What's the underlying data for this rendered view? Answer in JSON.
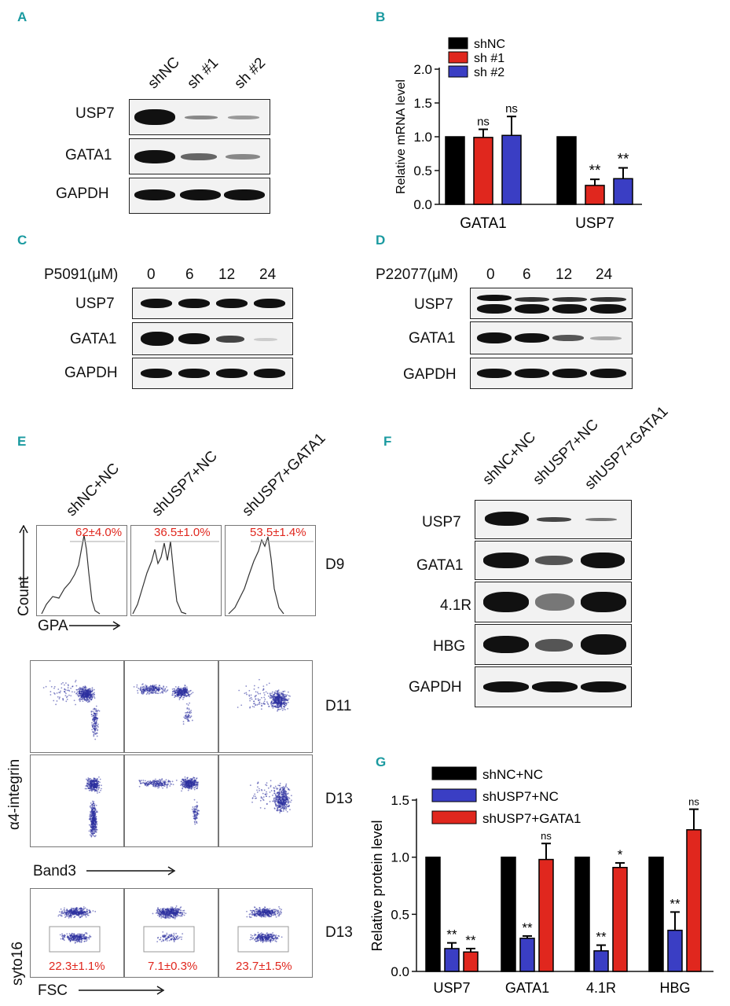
{
  "panels": {
    "A": {
      "letter": "A",
      "lanes": [
        "shNC",
        "sh #1",
        "sh #2"
      ],
      "rows": [
        "USP7",
        "GATA1",
        "GAPDH"
      ]
    },
    "B": {
      "letter": "B"
    },
    "C": {
      "letter": "C",
      "drug": "P5091(μM)",
      "doses": [
        "0",
        "6",
        "12",
        "24"
      ],
      "rows": [
        "USP7",
        "GATA1",
        "GAPDH"
      ]
    },
    "D": {
      "letter": "D",
      "drug": "P22077(μM)",
      "doses": [
        "0",
        "6",
        "12",
        "24"
      ],
      "rows": [
        "USP7",
        "GATA1",
        "GAPDH"
      ]
    },
    "E": {
      "letter": "E",
      "conditions": [
        "shNC+NC",
        "shUSP7+NC",
        "shUSP7+GATA1"
      ],
      "gpa_percent": [
        "62±4.0%",
        "36.5±1.0%",
        "53.5±1.4%"
      ],
      "count_label": "Count",
      "gpa_label": "GPA",
      "day_labels": [
        "D9",
        "D11",
        "D13",
        "D13"
      ],
      "integrin_label": "α4-integrin",
      "band3_label": "Band3",
      "syto_label": "syto16",
      "fsc_label": "FSC",
      "fsc_percent": [
        "22.3±1.1%",
        "7.1±0.3%",
        "23.7±1.5%"
      ]
    },
    "F": {
      "letter": "F",
      "lanes": [
        "shNC+NC",
        "shUSP7+NC",
        "shUSP7+GATA1"
      ],
      "rows": [
        "USP7",
        "GATA1",
        "4.1R",
        "HBG",
        "GAPDH"
      ]
    },
    "G": {
      "letter": "G"
    }
  },
  "chart_data": [
    {
      "panel": "B",
      "type": "bar",
      "categories": [
        "GATA1",
        "USP7"
      ],
      "series": [
        {
          "name": "shNC",
          "values": [
            1.0,
            1.0
          ],
          "errors": [
            0,
            0
          ],
          "sig": [
            "",
            ""
          ],
          "color": "#000000"
        },
        {
          "name": "sh #1",
          "values": [
            0.99,
            0.28
          ],
          "errors": [
            0.12,
            0.09
          ],
          "sig": [
            "ns",
            "**"
          ],
          "color": "#e0271e"
        },
        {
          "name": "sh #2",
          "values": [
            1.02,
            0.38
          ],
          "errors": [
            0.28,
            0.16
          ],
          "sig": [
            "ns",
            "**"
          ],
          "color": "#3a3ec4"
        }
      ],
      "ylabel": "Relative mRNA level",
      "ylim": [
        0,
        2.0
      ],
      "yticks": [
        "0.0",
        "0.5",
        "1.0",
        "1.5",
        "2.0"
      ],
      "legend": "top-left"
    },
    {
      "panel": "G",
      "type": "bar",
      "categories": [
        "USP7",
        "GATA1",
        "4.1R",
        "HBG"
      ],
      "series": [
        {
          "name": "shNC+NC",
          "values": [
            1.0,
            1.0,
            1.0,
            1.0
          ],
          "errors": [
            0,
            0,
            0,
            0
          ],
          "sig": [
            "",
            "",
            "",
            ""
          ],
          "color": "#000000"
        },
        {
          "name": "shUSP7+NC",
          "values": [
            0.2,
            0.29,
            0.18,
            0.36
          ],
          "errors": [
            0.05,
            0.02,
            0.05,
            0.16
          ],
          "sig": [
            "**",
            "**",
            "**",
            "**"
          ],
          "color": "#3a3ec4"
        },
        {
          "name": "shUSP7+GATA1",
          "values": [
            0.17,
            0.98,
            0.91,
            1.24
          ],
          "errors": [
            0.03,
            0.14,
            0.04,
            0.18
          ],
          "sig": [
            "**",
            "ns",
            "*",
            "ns"
          ],
          "color": "#e0271e"
        }
      ],
      "ylabel": "Relative protein level",
      "ylim": [
        0,
        1.5
      ],
      "yticks": [
        "0.0",
        "0.5",
        "1.0",
        "1.5"
      ],
      "legend": "top-left"
    }
  ]
}
